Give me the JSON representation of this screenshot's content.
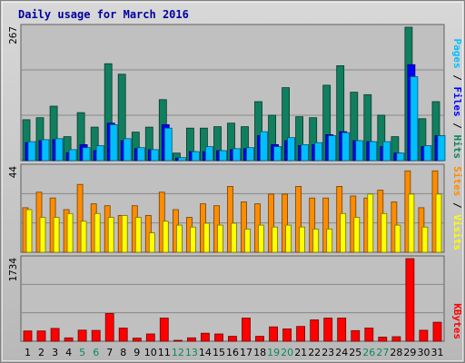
{
  "chart_data": [
    {
      "type": "bar",
      "title": "Daily usage for March 2016",
      "categories": [
        "1",
        "2",
        "3",
        "4",
        "5",
        "6",
        "7",
        "8",
        "9",
        "10",
        "11",
        "12",
        "13",
        "14",
        "15",
        "16",
        "17",
        "18",
        "19",
        "20",
        "21",
        "22",
        "23",
        "24",
        "25",
        "26",
        "27",
        "28",
        "29",
        "30",
        "31"
      ],
      "weekend_days": [
        "5",
        "6",
        "12",
        "13",
        "19",
        "20",
        "26",
        "27"
      ],
      "y_tick": "267",
      "ylim": [
        0,
        267
      ],
      "series": [
        {
          "name": "Hits",
          "color": "#107f5f",
          "values": [
            82,
            86,
            109,
            48,
            96,
            67,
            194,
            173,
            57,
            67,
            122,
            15,
            65,
            65,
            68,
            75,
            68,
            118,
            91,
            146,
            88,
            86,
            151,
            190,
            137,
            132,
            91,
            48,
            267,
            84,
            118
          ]
        },
        {
          "name": "Files",
          "color": "#0000ff",
          "values": [
            36,
            40,
            42,
            16,
            32,
            20,
            75,
            40,
            24,
            22,
            72,
            5,
            18,
            18,
            20,
            22,
            24,
            50,
            32,
            40,
            30,
            32,
            52,
            58,
            40,
            38,
            28,
            15,
            192,
            28,
            50
          ]
        },
        {
          "name": "Pages",
          "color": "#00bfff",
          "values": [
            38,
            42,
            44,
            22,
            26,
            30,
            72,
            44,
            26,
            22,
            65,
            6,
            18,
            28,
            20,
            24,
            26,
            58,
            28,
            46,
            32,
            36,
            50,
            56,
            40,
            38,
            38,
            15,
            168,
            30,
            50
          ]
        }
      ],
      "legend": [
        "Pages",
        "Files",
        "Hits"
      ],
      "legend_placement": "right",
      "grid": true
    },
    {
      "type": "bar",
      "categories": [
        "1",
        "2",
        "3",
        "4",
        "5",
        "6",
        "7",
        "8",
        "9",
        "10",
        "11",
        "12",
        "13",
        "14",
        "15",
        "16",
        "17",
        "18",
        "19",
        "20",
        "21",
        "22",
        "23",
        "24",
        "25",
        "26",
        "27",
        "28",
        "29",
        "30",
        "31"
      ],
      "y_tick": "44",
      "ylim": [
        0,
        44
      ],
      "series": [
        {
          "name": "Sites",
          "color": "#ff8c00",
          "values": [
            23,
            31,
            28,
            22,
            35,
            25,
            24,
            19,
            24,
            19,
            31,
            22,
            18,
            25,
            24,
            34,
            26,
            25,
            30,
            30,
            34,
            28,
            28,
            34,
            29,
            28,
            32,
            26,
            42,
            23,
            42
          ]
        },
        {
          "name": "Visits",
          "color": "#ffff00",
          "values": [
            22,
            18,
            18,
            20,
            16,
            20,
            18,
            19,
            18,
            10,
            16,
            14,
            13,
            15,
            14,
            15,
            12,
            14,
            13,
            14,
            13,
            12,
            12,
            20,
            18,
            30,
            20,
            14,
            30,
            13,
            30
          ]
        }
      ],
      "legend": [
        "Sites",
        "Visits"
      ],
      "legend_placement": "right",
      "grid": true
    },
    {
      "type": "bar",
      "categories": [
        "1",
        "2",
        "3",
        "4",
        "5",
        "6",
        "7",
        "8",
        "9",
        "10",
        "11",
        "12",
        "13",
        "14",
        "15",
        "16",
        "17",
        "18",
        "19",
        "20",
        "21",
        "22",
        "23",
        "24",
        "25",
        "26",
        "27",
        "28",
        "29",
        "30",
        "31"
      ],
      "y_tick": "1734",
      "ylim": [
        0,
        1734
      ],
      "series": [
        {
          "name": "KBytes",
          "color": "#ff0000",
          "values": [
            216,
            216,
            268,
            70,
            232,
            226,
            582,
            276,
            65,
            153,
            486,
            15,
            70,
            167,
            153,
            103,
            485,
            103,
            302,
            260,
            310,
            448,
            486,
            486,
            222,
            276,
            85,
            95,
            1734,
            231,
            399
          ]
        }
      ],
      "legend": [
        "KBytes"
      ],
      "legend_placement": "right",
      "grid": true
    }
  ]
}
